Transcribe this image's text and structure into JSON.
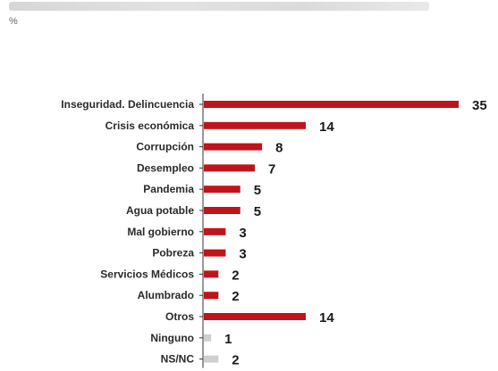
{
  "header": {
    "unit": "%"
  },
  "chart_data": {
    "type": "bar",
    "orientation": "horizontal",
    "categories": [
      "Inseguridad. Delincuencia",
      "Crisis económica",
      "Corrupción",
      "Desempleo",
      "Pandemia",
      "Agua potable",
      "Mal gobierno",
      "Pobreza",
      "Servicios Médicos",
      "Alumbrado",
      "Otros",
      "Ninguno",
      "NS/NC"
    ],
    "values": [
      35,
      14,
      8,
      7,
      5,
      5,
      3,
      3,
      2,
      2,
      14,
      1,
      2
    ],
    "xlim": [
      0,
      35
    ],
    "grid": false,
    "colors": {
      "bar": "#c0141c",
      "bar_muted": "#cfcfcf",
      "axis": "#333333"
    },
    "muted_categories": [
      "Ninguno",
      "NS/NC"
    ]
  }
}
